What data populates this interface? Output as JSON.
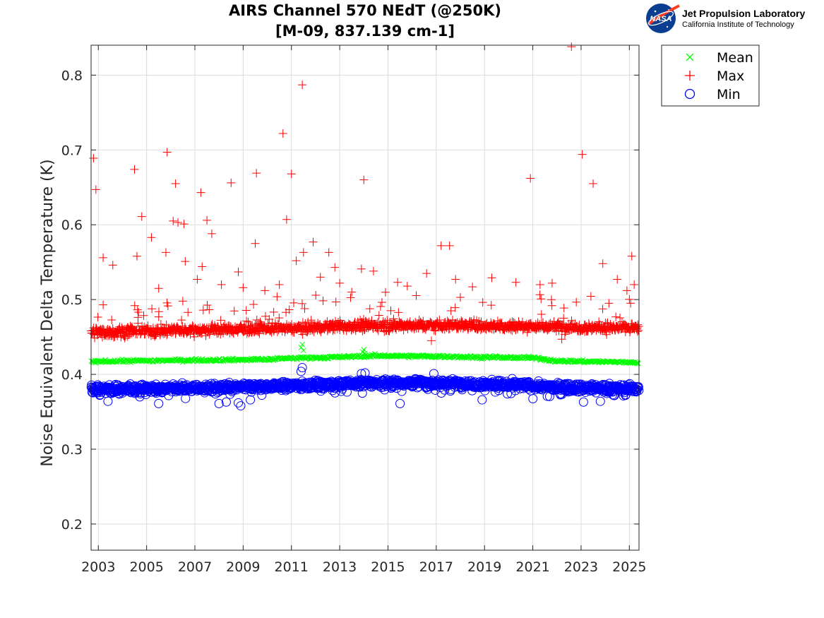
{
  "logo": {
    "nasa_text": "NASA",
    "org_title": "Jet Propulsion Laboratory",
    "org_subtitle": "California Institute of Technology"
  },
  "chart_data": {
    "type": "scatter",
    "title": [
      "AIRS Channel 570 NEdT (@250K)",
      "[M-09, 837.139 cm-1]"
    ],
    "xlabel": "",
    "ylabel": "Noise Equivalent Delta Temperature (K)",
    "xlim": [
      2002.7,
      2025.4
    ],
    "ylim": [
      0.165,
      0.84
    ],
    "x_ticks": [
      2003,
      2005,
      2007,
      2009,
      2011,
      2013,
      2015,
      2017,
      2019,
      2021,
      2023,
      2025
    ],
    "y_ticks": [
      0.2,
      0.3,
      0.4,
      0.5,
      0.6,
      0.7,
      0.8
    ],
    "grid": true,
    "legend_position": "outside-top-right",
    "series": [
      {
        "name": "Mean",
        "marker": "x",
        "color": "#00ff00",
        "trend": [
          [
            2002.7,
            0.417
          ],
          [
            2004,
            0.418
          ],
          [
            2007,
            0.419
          ],
          [
            2010,
            0.42
          ],
          [
            2011.3,
            0.422
          ],
          [
            2013,
            0.423
          ],
          [
            2014.5,
            0.425
          ],
          [
            2017,
            0.424
          ],
          [
            2019,
            0.423
          ],
          [
            2021,
            0.422
          ],
          [
            2022,
            0.418
          ],
          [
            2025.4,
            0.416
          ]
        ],
        "points": [
          [
            2011.45,
            0.44
          ],
          [
            2011.5,
            0.432
          ],
          [
            2011.4,
            0.436
          ],
          [
            2014.0,
            0.433
          ],
          [
            2014.05,
            0.428
          ],
          [
            2013.95,
            0.43
          ]
        ]
      },
      {
        "name": "Max",
        "marker": "+",
        "color": "#ff0000",
        "trend": [
          [
            2002.7,
            0.456
          ],
          [
            2005,
            0.458
          ],
          [
            2008,
            0.46
          ],
          [
            2011,
            0.462
          ],
          [
            2014,
            0.465
          ],
          [
            2017,
            0.466
          ],
          [
            2020,
            0.465
          ],
          [
            2023,
            0.463
          ],
          [
            2025.4,
            0.462
          ]
        ],
        "points": [
          [
            2002.8,
            0.689
          ],
          [
            2002.9,
            0.647
          ],
          [
            2003.2,
            0.556
          ],
          [
            2003.2,
            0.493
          ],
          [
            2003.6,
            0.546
          ],
          [
            2004.5,
            0.674
          ],
          [
            2004.6,
            0.558
          ],
          [
            2004.8,
            0.611
          ],
          [
            2005.2,
            0.583
          ],
          [
            2005.5,
            0.515
          ],
          [
            2005.8,
            0.563
          ],
          [
            2005.85,
            0.697
          ],
          [
            2006.1,
            0.605
          ],
          [
            2006.2,
            0.655
          ],
          [
            2006.3,
            0.603
          ],
          [
            2006.55,
            0.601
          ],
          [
            2006.6,
            0.551
          ],
          [
            2007.1,
            0.527
          ],
          [
            2007.25,
            0.643
          ],
          [
            2007.3,
            0.544
          ],
          [
            2007.5,
            0.606
          ],
          [
            2007.7,
            0.588
          ],
          [
            2008.1,
            0.52
          ],
          [
            2008.5,
            0.656
          ],
          [
            2008.8,
            0.537
          ],
          [
            2009.0,
            0.516
          ],
          [
            2009.5,
            0.575
          ],
          [
            2009.55,
            0.669
          ],
          [
            2009.9,
            0.512
          ],
          [
            2010.5,
            0.52
          ],
          [
            2010.65,
            0.722
          ],
          [
            2010.8,
            0.607
          ],
          [
            2011.0,
            0.668
          ],
          [
            2011.2,
            0.552
          ],
          [
            2011.45,
            0.787
          ],
          [
            2011.5,
            0.563
          ],
          [
            2011.9,
            0.577
          ],
          [
            2012.2,
            0.53
          ],
          [
            2012.55,
            0.563
          ],
          [
            2012.8,
            0.543
          ],
          [
            2013.0,
            0.522
          ],
          [
            2013.5,
            0.51
          ],
          [
            2013.9,
            0.541
          ],
          [
            2014.0,
            0.66
          ],
          [
            2014.4,
            0.538
          ],
          [
            2015.4,
            0.523
          ],
          [
            2015.8,
            0.518
          ],
          [
            2016.6,
            0.535
          ],
          [
            2017.2,
            0.572
          ],
          [
            2017.55,
            0.572
          ],
          [
            2017.8,
            0.527
          ],
          [
            2018.5,
            0.517
          ],
          [
            2019.3,
            0.529
          ],
          [
            2020.3,
            0.523
          ],
          [
            2020.9,
            0.662
          ],
          [
            2021.3,
            0.52
          ],
          [
            2021.8,
            0.522
          ],
          [
            2022.6,
            0.838
          ],
          [
            2023.05,
            0.694
          ],
          [
            2023.5,
            0.655
          ],
          [
            2023.9,
            0.548
          ],
          [
            2024.5,
            0.527
          ],
          [
            2024.9,
            0.512
          ],
          [
            2025.1,
            0.558
          ],
          [
            2025.2,
            0.52
          ],
          [
            2016.8,
            0.445
          ],
          [
            2022.2,
            0.447
          ]
        ]
      },
      {
        "name": "Min",
        "marker": "o",
        "color": "#0000ff",
        "trend": [
          [
            2002.7,
            0.38
          ],
          [
            2005,
            0.381
          ],
          [
            2008,
            0.382
          ],
          [
            2011,
            0.385
          ],
          [
            2014,
            0.388
          ],
          [
            2016,
            0.389
          ],
          [
            2018,
            0.388
          ],
          [
            2020,
            0.386
          ],
          [
            2022,
            0.383
          ],
          [
            2025.4,
            0.381
          ]
        ],
        "points": [
          [
            2011.45,
            0.409
          ],
          [
            2011.4,
            0.404
          ],
          [
            2013.9,
            0.401
          ],
          [
            2014.05,
            0.402
          ],
          [
            2016.9,
            0.401
          ],
          [
            2005.5,
            0.361
          ],
          [
            2008.0,
            0.361
          ],
          [
            2008.3,
            0.363
          ],
          [
            2008.8,
            0.362
          ],
          [
            2008.9,
            0.358
          ],
          [
            2015.5,
            0.361
          ],
          [
            2023.1,
            0.363
          ],
          [
            2023.8,
            0.364
          ],
          [
            2003.4,
            0.364
          ],
          [
            2009.3,
            0.366
          ],
          [
            2018.9,
            0.366
          ]
        ]
      }
    ]
  }
}
